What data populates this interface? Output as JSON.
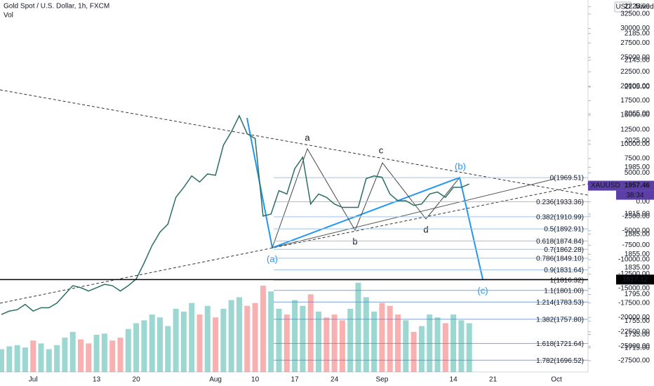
{
  "header": {
    "title": "Gold Spot / U.S. Dollar, 1h, FXCM",
    "indicator": "Vol",
    "currency": "USD",
    "scale_mode": "Mixed"
  },
  "chart_data": {
    "type": "line",
    "color": "#2b6e62",
    "up_color": "rgba(38,166,154,0.45)",
    "down_color": "rgba(239,83,80,0.45)",
    "categories": [
      null,
      null,
      null,
      null,
      "Jul",
      null,
      null,
      null,
      null,
      null,
      null,
      null,
      "13",
      null,
      null,
      null,
      null,
      "20",
      null,
      null,
      null,
      null,
      null,
      null,
      null,
      null,
      null,
      "Aug",
      null,
      null,
      null,
      null,
      "10",
      null,
      null,
      null,
      null,
      "17",
      null,
      null,
      null,
      null,
      "24",
      null,
      null,
      null,
      null,
      null,
      "Sep",
      null,
      null,
      null,
      null,
      null,
      null,
      null,
      null,
      "14",
      null,
      null,
      null,
      null,
      "21",
      null,
      null,
      null,
      null,
      null,
      null,
      null,
      "Oct",
      null,
      null
    ],
    "series": [
      {
        "name": "XAUUSD",
        "values": [
          1765,
          1770,
          1772,
          1780,
          1770,
          1775,
          1775,
          1782,
          1795,
          1808,
          1805,
          1800,
          1805,
          1810,
          1808,
          1800,
          1808,
          1818,
          1842,
          1868,
          1888,
          1900,
          1940,
          1955,
          1972,
          1963,
          1975,
          1973,
          2018,
          2038,
          2062,
          2035,
          2028,
          1912,
          1915,
          1950,
          1945,
          1983,
          2000,
          1930,
          1945,
          1940,
          1930,
          1925,
          1925,
          1925,
          1968,
          1972,
          1970,
          1945,
          1935,
          1935,
          1928,
          1930,
          1945,
          1948,
          1940,
          1955,
          1955,
          1960,
          null,
          null,
          null,
          null,
          null,
          null,
          null,
          null,
          null,
          null,
          null,
          null,
          null
        ]
      },
      {
        "name": "Vol",
        "axis": "y2",
        "values": [
          -25500,
          -25000,
          -24800,
          -25200,
          -24000,
          -24500,
          -25500,
          -24800,
          -23500,
          -22500,
          -23800,
          -24500,
          -23000,
          -22800,
          -24000,
          -23500,
          -22000,
          -21000,
          -20500,
          -19500,
          -20000,
          -21500,
          -18500,
          -19000,
          -17500,
          -19500,
          -18000,
          -20000,
          -18500,
          -17000,
          -16500,
          -18000,
          -17500,
          -14500,
          -15500,
          -18500,
          -19500,
          -17000,
          -18000,
          -16000,
          -19000,
          -20000,
          -19500,
          -20500,
          -18500,
          -14000,
          -16500,
          -19000,
          -17500,
          -18000,
          -19500,
          -20500,
          -22500,
          -21500,
          -19500,
          -20000,
          -21000,
          -19500,
          -20500,
          -21000,
          null,
          null,
          null,
          null,
          null,
          null,
          null,
          null,
          null,
          null,
          null,
          null,
          null
        ]
      }
    ],
    "ylim": [
      1679,
      2235
    ],
    "yticks": [
      {
        "value": 2225,
        "label": "2225.00"
      },
      {
        "value": 2185,
        "label": "2185.00"
      },
      {
        "value": 2145,
        "label": "2145.00"
      },
      {
        "value": 2105,
        "label": "2105.00"
      },
      {
        "value": 2065,
        "label": "2065.00"
      },
      {
        "value": 2025,
        "label": "2025.00"
      },
      {
        "value": 1985,
        "label": "1985.00"
      },
      {
        "value": 1915,
        "label": "1915.00"
      },
      {
        "value": 1885,
        "label": "1885.00"
      },
      {
        "value": 1855,
        "label": "1855.00"
      },
      {
        "value": 1835,
        "label": "1835.00"
      },
      {
        "value": 1795,
        "label": "1795.00"
      },
      {
        "value": 1755,
        "label": "1755.00"
      },
      {
        "value": 1735,
        "label": "1735.00"
      },
      {
        "value": 1715,
        "label": "1715.00"
      }
    ],
    "y2lim": [
      -29440,
      34930
    ],
    "y2ticks": [
      {
        "value": 32500,
        "label": "32500.00"
      },
      {
        "value": 30000,
        "label": "30000.00"
      },
      {
        "value": 27500,
        "label": "27500.00"
      },
      {
        "value": 25000,
        "label": "25000.00"
      },
      {
        "value": 22500,
        "label": "22500.00"
      },
      {
        "value": 20000,
        "label": "20000.00"
      },
      {
        "value": 17500,
        "label": "17500.00"
      },
      {
        "value": 15000,
        "label": "15000.00"
      },
      {
        "value": 12500,
        "label": "12500.00"
      },
      {
        "value": 10000,
        "label": "10000.00"
      },
      {
        "value": 7500,
        "label": "7500.00"
      },
      {
        "value": 5000,
        "label": "5000.00"
      },
      {
        "value": 2500,
        "label": "2500.00"
      },
      {
        "value": 0,
        "label": "0.00"
      },
      {
        "value": -2500,
        "label": "-2500.00"
      },
      {
        "value": -5000,
        "label": "-5000.00"
      },
      {
        "value": -7500,
        "label": "-7500.00"
      },
      {
        "value": -10000,
        "label": "-10000.00"
      },
      {
        "value": -12500,
        "label": "-12500.00"
      },
      {
        "value": -15000,
        "label": "-15000.00"
      },
      {
        "value": -17500,
        "label": "-17500.00"
      },
      {
        "value": -20000,
        "label": "-20000.00"
      },
      {
        "value": -22500,
        "label": "-22500.00"
      },
      {
        "value": -25000,
        "label": "-25000.00"
      },
      {
        "value": -27500,
        "label": "-27500.00"
      }
    ],
    "fib_levels": [
      {
        "value": 1969.51,
        "label": "0(1969.51)"
      },
      {
        "value": 1933.36,
        "label": "0.236(1933.36)"
      },
      {
        "value": 1910.99,
        "label": "0.382(1910.99)"
      },
      {
        "value": 1892.91,
        "label": "0.5(1892.91)"
      },
      {
        "value": 1874.84,
        "label": "0.618(1874.84)"
      },
      {
        "value": 1862.28,
        "label": "0.7(1862.28)"
      },
      {
        "value": 1849.1,
        "label": "0.786(1849.10)"
      },
      {
        "value": 1831.64,
        "label": "0.9(1831.64)"
      },
      {
        "value": 1816.32,
        "label": "1(1816.32)"
      },
      {
        "value": 1801.0,
        "label": "1.1(1801.00)"
      },
      {
        "value": 1783.53,
        "label": "1.214(1783.53)"
      },
      {
        "value": 1757.8,
        "label": "1.382(1757.80)"
      },
      {
        "value": 1721.64,
        "label": "1.618(1721.64)"
      },
      {
        "value": 1696.52,
        "label": "1.782(1696.52)"
      }
    ],
    "hline": 1817.12,
    "last_price": 1957.46,
    "symbol": "XAUUSD",
    "countdown": "38:34",
    "annotations": [
      "(a)",
      "a",
      "b",
      "c",
      "d",
      "(b)",
      "(c)"
    ]
  }
}
